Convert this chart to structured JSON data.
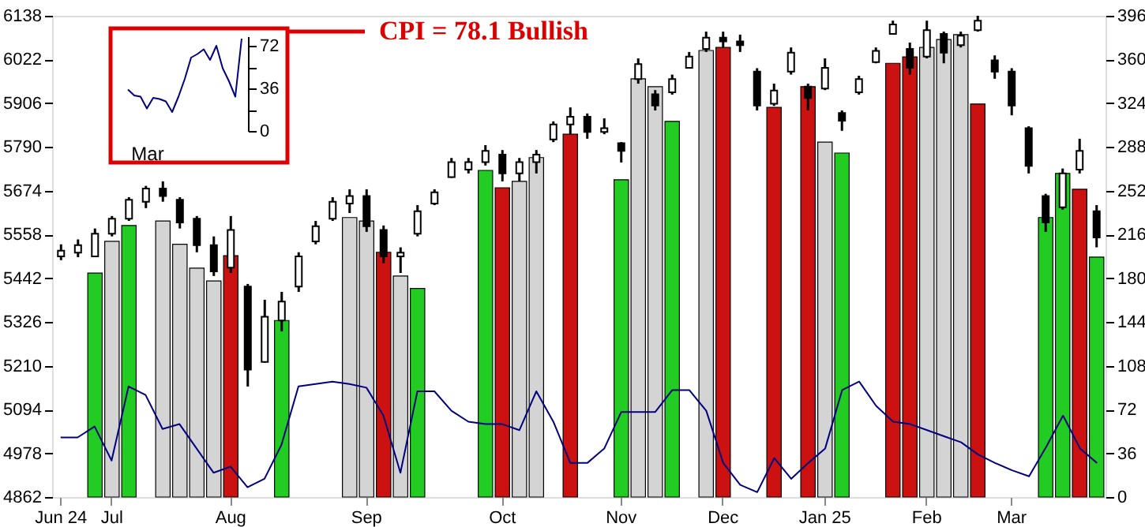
{
  "chart_data": [
    {
      "type": "candlestick",
      "title": "CPI = 78.1   Bullish",
      "categories": [
        "Jun 24",
        null,
        null,
        "Jul",
        null,
        null,
        null,
        null,
        null,
        null,
        "Aug",
        null,
        null,
        null,
        null,
        null,
        null,
        null,
        "Sep",
        null,
        null,
        null,
        null,
        null,
        null,
        null,
        "Oct",
        null,
        null,
        null,
        null,
        null,
        null,
        "Nov",
        null,
        null,
        null,
        null,
        null,
        "Dec",
        null,
        null,
        null,
        null,
        null,
        "Jan 25",
        null,
        null,
        null,
        null,
        null,
        "Feb",
        null,
        null,
        null,
        null,
        "Mar",
        null,
        null,
        null,
        null,
        null
      ],
      "ohlc": [
        [
          5500,
          5532,
          5490,
          5515
        ],
        [
          5510,
          5545,
          5498,
          5530
        ],
        [
          5500,
          5574,
          5498,
          5560
        ],
        [
          5560,
          5607,
          5553,
          5600
        ],
        [
          5600,
          5657,
          5594,
          5650
        ],
        [
          5645,
          5687,
          5628,
          5680
        ],
        [
          5680,
          5699,
          5645,
          5660
        ],
        [
          5650,
          5657,
          5574,
          5590
        ],
        [
          5600,
          5607,
          5511,
          5530
        ],
        [
          5530,
          5553,
          5448,
          5460
        ],
        [
          5470,
          5607,
          5456,
          5570
        ],
        [
          5420,
          5427,
          5155,
          5200
        ],
        [
          5220,
          5385,
          5218,
          5340
        ],
        [
          5330,
          5406,
          5301,
          5380
        ],
        [
          5420,
          5511,
          5406,
          5500
        ],
        [
          5540,
          5594,
          5532,
          5580
        ],
        [
          5600,
          5657,
          5594,
          5645
        ],
        [
          5640,
          5678,
          5615,
          5660
        ],
        [
          5660,
          5678,
          5565,
          5580
        ],
        [
          5570,
          5582,
          5482,
          5500
        ],
        [
          5500,
          5524,
          5456,
          5510
        ],
        [
          5560,
          5636,
          5553,
          5620
        ],
        [
          5640,
          5678,
          5636,
          5670
        ],
        [
          5710,
          5761,
          5708,
          5750
        ],
        [
          5730,
          5761,
          5720,
          5750
        ],
        [
          5750,
          5795,
          5741,
          5780
        ],
        [
          5770,
          5782,
          5699,
          5720
        ],
        [
          5720,
          5761,
          5699,
          5750
        ],
        [
          5750,
          5782,
          5720,
          5770
        ],
        [
          5810,
          5858,
          5803,
          5850
        ],
        [
          5850,
          5895,
          5824,
          5870
        ],
        [
          5870,
          5879,
          5812,
          5830
        ],
        [
          5830,
          5866,
          5824,
          5840
        ],
        [
          5800,
          5803,
          5749,
          5780
        ],
        [
          5970,
          6025,
          5958,
          6010
        ],
        [
          5930,
          5941,
          5887,
          5900
        ],
        [
          5935,
          5982,
          5929,
          5970
        ],
        [
          6000,
          6042,
          5999,
          6030
        ],
        [
          6050,
          6096,
          6042,
          6080
        ],
        [
          6080,
          6096,
          6054,
          6070
        ],
        [
          6070,
          6088,
          6042,
          6060
        ],
        [
          5990,
          5999,
          5887,
          5900
        ],
        [
          5905,
          5958,
          5899,
          5940
        ],
        [
          5990,
          6054,
          5982,
          6040
        ],
        [
          5950,
          5958,
          5887,
          5920
        ],
        [
          5945,
          6025,
          5941,
          6000
        ],
        [
          5880,
          5887,
          5833,
          5860
        ],
        [
          5935,
          5979,
          5929,
          5970
        ],
        [
          6015,
          6054,
          6012,
          6045
        ],
        [
          6090,
          6125,
          6088,
          6115
        ],
        [
          6050,
          6067,
          5982,
          6000
        ],
        [
          6030,
          6125,
          6025,
          6100
        ],
        [
          6090,
          6096,
          6012,
          6040
        ],
        [
          6060,
          6096,
          6054,
          6085
        ],
        [
          6100,
          6138,
          6096,
          6125
        ],
        [
          6020,
          6033,
          5971,
          5990
        ],
        [
          5990,
          5999,
          5874,
          5900
        ],
        [
          5840,
          5845,
          5720,
          5740
        ],
        [
          5660,
          5666,
          5565,
          5590
        ],
        [
          5630,
          5733,
          5624,
          5720
        ],
        [
          5730,
          5812,
          5720,
          5780
        ],
        [
          5620,
          5636,
          5524,
          5550
        ]
      ],
      "series": [
        {
          "type": "bar",
          "values": [
            null,
            null,
            5456,
            5540,
            5582,
            null,
            5594,
            5532,
            5469,
            5435,
            5502,
            null,
            null,
            5330,
            null,
            null,
            null,
            5603,
            5594,
            5511,
            5448,
            5415,
            null,
            null,
            null,
            5728,
            5682,
            5699,
            5762,
            null,
            5824,
            null,
            null,
            5703,
            5971,
            5950,
            5858,
            null,
            6046,
            6054,
            null,
            null,
            5895,
            null,
            5950,
            5803,
            5774,
            null,
            null,
            6012,
            6029,
            6054,
            6075,
            6088,
            5904,
            null,
            null,
            null,
            5603,
            5720,
            5678,
            5498
          ],
          "colors": [
            null,
            null,
            "#22cc22",
            "#d4d4d4",
            "#22cc22",
            null,
            "#d4d4d4",
            "#d4d4d4",
            "#d4d4d4",
            "#d4d4d4",
            "#cc1111",
            null,
            null,
            "#22cc22",
            null,
            null,
            null,
            "#d4d4d4",
            "#d4d4d4",
            "#cc1111",
            "#d4d4d4",
            "#22cc22",
            null,
            null,
            null,
            "#22cc22",
            "#cc1111",
            "#d4d4d4",
            "#d4d4d4",
            null,
            "#cc1111",
            null,
            null,
            "#22cc22",
            "#d4d4d4",
            "#d4d4d4",
            "#22cc22",
            null,
            "#d4d4d4",
            "#cc1111",
            null,
            null,
            "#cc1111",
            null,
            "#cc1111",
            "#d4d4d4",
            "#22cc22",
            null,
            null,
            "#cc1111",
            "#cc1111",
            "#d4d4d4",
            "#d4d4d4",
            "#d4d4d4",
            "#cc1111",
            null,
            null,
            null,
            "#22cc22",
            "#22cc22",
            "#cc1111",
            "#22cc22"
          ]
        },
        {
          "type": "line",
          "axis": "y2",
          "color": "#000080",
          "values": [
            49,
            49,
            58,
            30,
            91,
            84,
            56,
            60,
            40,
            20,
            25,
            8,
            15,
            43,
            91,
            93,
            95,
            93,
            90,
            67,
            20,
            87,
            87,
            71,
            62,
            60,
            60,
            55,
            87,
            62,
            28,
            28,
            40,
            70,
            70,
            70,
            88,
            88,
            71,
            28,
            10,
            4,
            32,
            15,
            28,
            40,
            88,
            95,
            75,
            62,
            60,
            55,
            50,
            45,
            35,
            28,
            22,
            17,
            41,
            67,
            40,
            28
          ]
        }
      ],
      "ylim": [
        4862,
        6138
      ],
      "yticks": [
        4862,
        4978,
        5094,
        5210,
        5326,
        5442,
        5558,
        5674,
        5790,
        5906,
        6022,
        6138
      ],
      "y2lim": [
        0,
        396
      ],
      "y2ticks": [
        0,
        36,
        72,
        108,
        144,
        180,
        216,
        252,
        288,
        324,
        360,
        396
      ],
      "grid": false
    },
    {
      "type": "line",
      "categories": [
        null,
        null,
        null,
        "Mar",
        null,
        null,
        null,
        null,
        null,
        null,
        null,
        null,
        null,
        null,
        null,
        null,
        null,
        null,
        null
      ],
      "values": [
        35,
        30,
        29,
        19,
        28,
        27,
        25,
        16,
        29,
        44,
        62,
        65,
        69,
        60,
        72,
        53,
        42,
        29,
        78
      ],
      "color": "#000080",
      "ylim": [
        0,
        80
      ],
      "yticks": [
        0,
        {
          "value": 18,
          "label": null
        },
        36,
        {
          "value": 54,
          "label": null
        },
        72
      ],
      "grid": false
    }
  ]
}
